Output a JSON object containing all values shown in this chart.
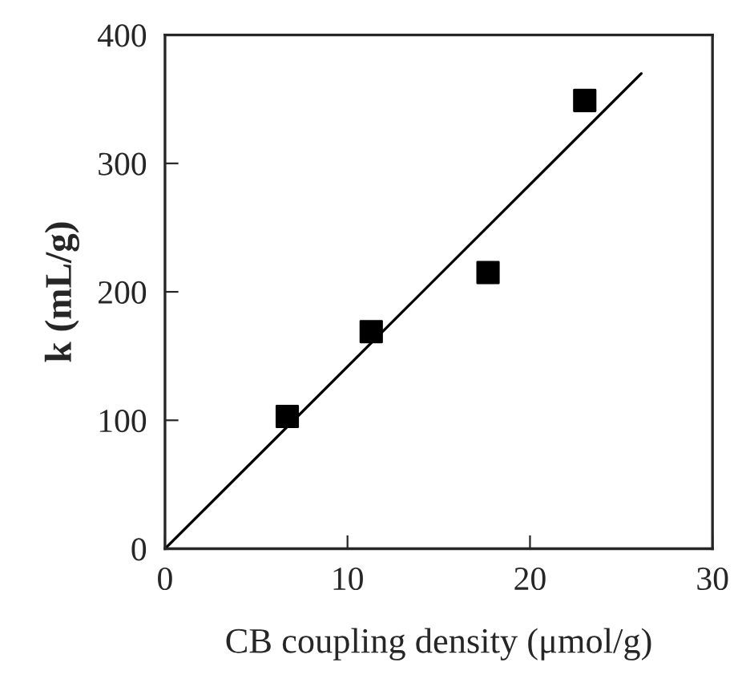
{
  "chart_data": {
    "type": "scatter",
    "xlabel": "CB coupling density (μmol/g)",
    "ylabel": "k (mL/g)",
    "series": [
      {
        "color": "#000000",
        "marker": "square",
        "x": [
          6.7,
          11.3,
          17.7,
          23.0
        ],
        "values": [
          103,
          169,
          215,
          349
        ]
      },
      {
        "type": "line",
        "color": "#000000",
        "marker": "none",
        "line_style": "solid",
        "x": [
          0,
          26.1
        ],
        "values": [
          0,
          370
        ]
      }
    ],
    "xlim": [
      0,
      30
    ],
    "xticks": [
      0,
      10,
      20,
      30
    ],
    "ylim": [
      0,
      400
    ],
    "yticks": [
      0,
      100,
      200,
      300,
      400
    ],
    "grid": false,
    "legend": false
  }
}
